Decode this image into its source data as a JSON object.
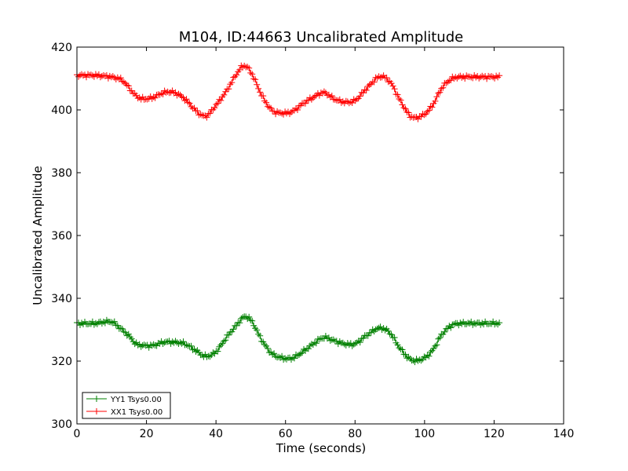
{
  "chart_data": {
    "type": "line",
    "title": "M104, ID:44663 Uncalibrated Amplitude",
    "xlabel": "Time (seconds)",
    "ylabel": "Uncalibrated Amplitude",
    "xlim": [
      0,
      140
    ],
    "ylim": [
      300,
      420
    ],
    "xticks": [
      "0",
      "20",
      "40",
      "60",
      "80",
      "100",
      "120",
      "140"
    ],
    "yticks": [
      "300",
      "320",
      "340",
      "360",
      "380",
      "400",
      "420"
    ],
    "grid": false,
    "legend_position": "lower-left",
    "marker": "+",
    "series": [
      {
        "name": "YY1 Tsys0.00",
        "color": "#008000",
        "x": [
          0,
          5,
          10,
          13,
          15,
          17,
          19,
          22,
          25,
          28,
          31,
          34,
          37,
          40,
          43,
          46,
          48,
          50,
          53,
          56,
          59,
          62,
          65,
          68,
          71,
          74,
          77,
          80,
          83,
          87,
          90,
          93,
          96,
          99,
          102,
          105,
          108,
          111,
          115,
          118,
          121.5
        ],
        "y": [
          332,
          332,
          332.5,
          330,
          328,
          325.5,
          325,
          325,
          326,
          326,
          325.5,
          323.5,
          321.5,
          323,
          327.5,
          331.5,
          334,
          333,
          327,
          322.5,
          321,
          321,
          323,
          325.5,
          327.5,
          326.5,
          325.5,
          325.5,
          328,
          330.5,
          329,
          324,
          320.5,
          320.5,
          323,
          328.5,
          331.5,
          332,
          332,
          332,
          332
        ]
      },
      {
        "name": "XX1 Tsys0.00",
        "color": "#ff0000",
        "x": [
          0,
          5,
          10,
          13,
          15,
          17,
          19,
          22,
          25,
          28,
          31,
          34,
          37,
          40,
          43,
          46,
          48,
          50,
          53,
          56,
          59,
          62,
          65,
          68,
          71,
          74,
          77,
          80,
          83,
          87,
          90,
          93,
          96,
          99,
          102,
          105,
          108,
          111,
          115,
          118,
          121.5
        ],
        "y": [
          411,
          411,
          410.5,
          409.5,
          407,
          404.5,
          403.5,
          404,
          405.5,
          405.5,
          403.5,
          400,
          398,
          401.5,
          406,
          411.5,
          414,
          412,
          405,
          400,
          399,
          399.5,
          402,
          404,
          405.5,
          403.5,
          402.5,
          403,
          406.5,
          410.5,
          409,
          403,
          398,
          398,
          401,
          407,
          410,
          410.5,
          410.5,
          410.5,
          410.5
        ]
      }
    ]
  }
}
